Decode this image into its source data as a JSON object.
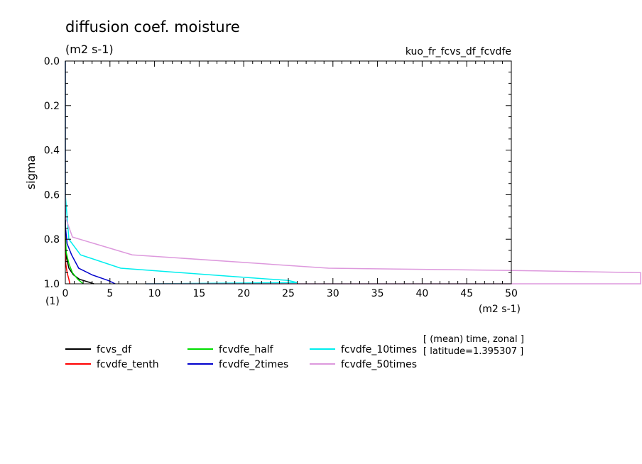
{
  "figure": {
    "title": "diffusion coef. moisture",
    "title_units": "(m2 s-1)",
    "run_name": "kuo_fr_fcvs_df_fcvdfe",
    "annotation_line1": "[ (mean) time, zonal ]",
    "annotation_line2": "[ latitude=1.395307 ]"
  },
  "chart_data": {
    "type": "line",
    "title": "diffusion coef. moisture",
    "units": "(m2 s-1)",
    "xlabel": "(m2 s-1)",
    "ylabel": "sigma",
    "y_unit_label": "(1)",
    "xlim": [
      0,
      50
    ],
    "ylim": [
      0.0,
      1.0
    ],
    "y_inverted": true,
    "x_ticks": [
      0,
      5,
      10,
      15,
      20,
      25,
      30,
      35,
      40,
      45,
      50
    ],
    "x_tick_labels": [
      "0",
      "5",
      "10",
      "15",
      "20",
      "25",
      "30",
      "35",
      "40",
      "45",
      "50"
    ],
    "y_ticks": [
      0.0,
      0.2,
      0.4,
      0.6,
      0.8,
      1.0
    ],
    "y_tick_labels": [
      "0.0",
      "0.2",
      "0.4",
      "0.6",
      "0.8",
      "1.0"
    ],
    "grid": false,
    "legend_position": "bottom",
    "series": [
      {
        "name": "fcvs_df",
        "color": "#000000",
        "x": [
          0,
          0,
          0.1,
          0.4,
          0.9,
          1.6,
          2.8,
          3.2
        ],
        "y": [
          0.0,
          0.8,
          0.88,
          0.93,
          0.96,
          0.98,
          0.995,
          1.0
        ]
      },
      {
        "name": "fcvdfe_tenth",
        "color": "#ff0000",
        "x": [
          0,
          0,
          0.05,
          0.2,
          0.4,
          0.5
        ],
        "y": [
          0.0,
          0.85,
          0.91,
          0.95,
          0.98,
          1.0
        ]
      },
      {
        "name": "fcvdfe_half",
        "color": "#00dd00",
        "x": [
          0,
          0,
          0.1,
          0.4,
          0.8,
          1.4,
          2.0
        ],
        "y": [
          0.0,
          0.78,
          0.86,
          0.91,
          0.95,
          0.98,
          1.0
        ]
      },
      {
        "name": "fcvdfe_2times",
        "color": "#0000cc",
        "x": [
          0,
          0,
          0.2,
          0.7,
          1.5,
          3.0,
          4.8,
          5.6
        ],
        "y": [
          0.0,
          0.74,
          0.82,
          0.87,
          0.93,
          0.96,
          0.985,
          1.0
        ]
      },
      {
        "name": "fcvdfe_10times",
        "color": "#00eeee",
        "x": [
          0,
          0,
          0.4,
          1.7,
          6.2,
          18.0,
          25.0,
          26.0,
          9.0
        ],
        "y": [
          0.0,
          0.6,
          0.8,
          0.87,
          0.93,
          0.965,
          0.985,
          0.995,
          1.0
        ]
      },
      {
        "name": "fcvdfe_50times",
        "color": "#dd99dd",
        "x": [
          0,
          0,
          0.8,
          7.5,
          29.5,
          50.0,
          64.5,
          64.5,
          9.0
        ],
        "y": [
          0.0,
          0.7,
          0.79,
          0.87,
          0.93,
          0.94,
          0.95,
          1.0,
          1.0
        ]
      }
    ]
  }
}
